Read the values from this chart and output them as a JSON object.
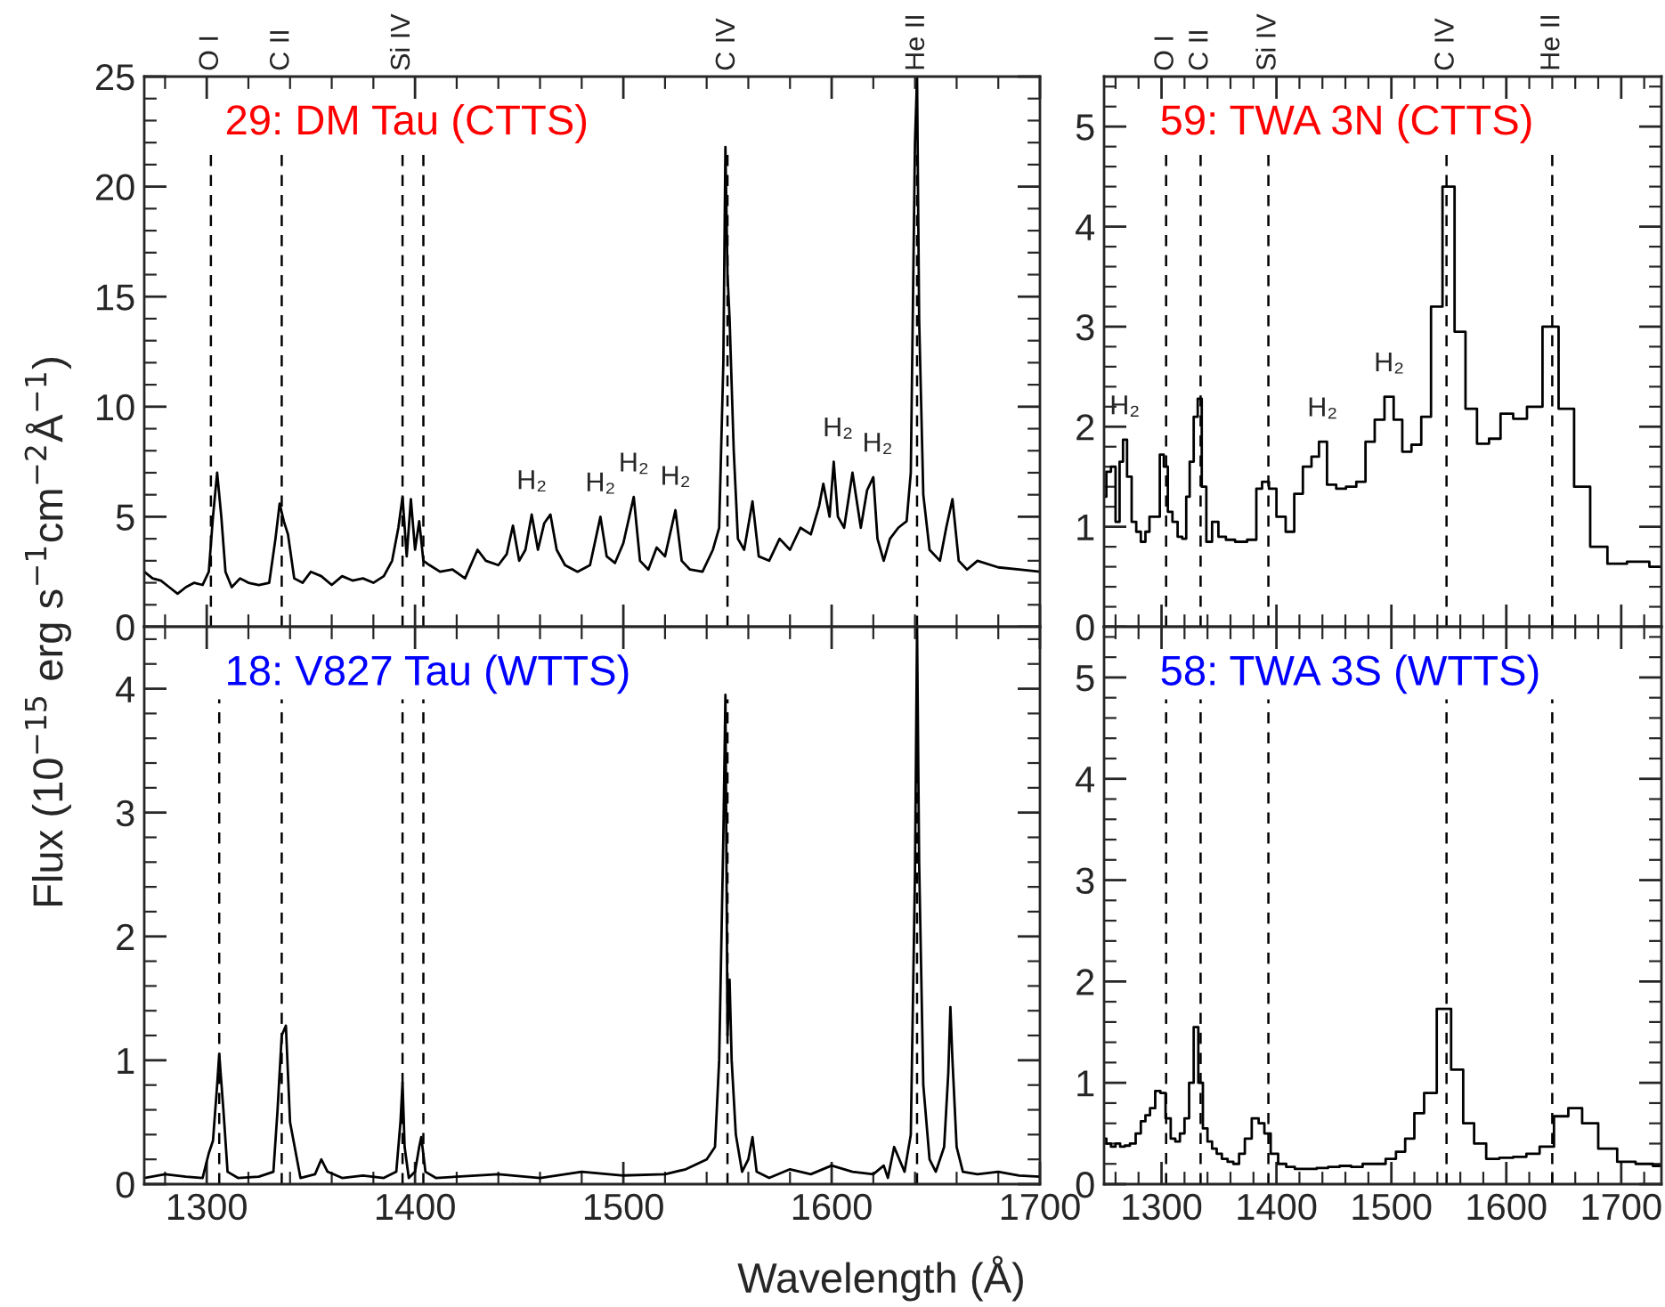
{
  "chart_data": [
    {
      "type": "line",
      "title": "29: DM Tau (CTTS)",
      "ylabel": "Flux (10$^{−15}$ erg s$^{−1}$cm$^{−2}$Å$^{−1}$)",
      "xlim": [
        1270,
        1700
      ],
      "xticks": [
        1300,
        1400,
        1500,
        1600,
        1700
      ],
      "ylim": [
        0,
        25
      ],
      "yticks": [
        0,
        5,
        10,
        15,
        20,
        25
      ],
      "tick_labels": "y",
      "x": [
        1270,
        1274,
        1278,
        1282,
        1286,
        1290,
        1294,
        1298,
        1301,
        1303,
        1305,
        1307,
        1309,
        1312,
        1316,
        1320,
        1325,
        1330,
        1333,
        1335,
        1337,
        1339,
        1342,
        1346,
        1350,
        1355,
        1360,
        1365,
        1370,
        1375,
        1380,
        1385,
        1389,
        1392,
        1394,
        1396,
        1398,
        1400,
        1402,
        1404,
        1407,
        1412,
        1418,
        1424,
        1430,
        1434,
        1440,
        1444,
        1447,
        1450,
        1453,
        1456,
        1459,
        1462,
        1465,
        1468,
        1472,
        1478,
        1484,
        1489,
        1492,
        1496,
        1500,
        1505,
        1508,
        1512,
        1516,
        1520,
        1525,
        1528,
        1532,
        1538,
        1543,
        1546,
        1548,
        1549,
        1550,
        1551,
        1553,
        1555,
        1558,
        1562,
        1565,
        1570,
        1575,
        1580,
        1585,
        1590,
        1594,
        1596,
        1599,
        1601,
        1603,
        1606,
        1610,
        1614,
        1617,
        1620,
        1622,
        1625,
        1628,
        1632,
        1636,
        1638,
        1640,
        1641,
        1642,
        1644,
        1647,
        1652,
        1655,
        1658,
        1661,
        1665,
        1670,
        1680,
        1690,
        1700
      ],
      "series": [
        {
          "color": "#000000",
          "values": [
            2.5,
            2.2,
            2.1,
            1.8,
            1.5,
            1.8,
            2.0,
            1.9,
            2.5,
            5.0,
            7.0,
            5.0,
            2.5,
            1.8,
            2.2,
            2.0,
            1.9,
            2.0,
            4.0,
            5.6,
            4.8,
            4.2,
            2.2,
            2.0,
            2.5,
            2.3,
            1.9,
            2.3,
            2.1,
            2.2,
            2.0,
            2.3,
            3.0,
            4.5,
            5.9,
            3.2,
            5.8,
            3.5,
            4.8,
            3.0,
            2.8,
            2.5,
            2.6,
            2.2,
            3.5,
            3.0,
            2.8,
            3.3,
            4.6,
            3.0,
            3.5,
            5.1,
            3.5,
            4.7,
            5.1,
            3.5,
            2.8,
            2.5,
            2.8,
            5.0,
            3.2,
            2.9,
            3.8,
            5.9,
            3.0,
            2.6,
            3.6,
            3.2,
            5.3,
            3.0,
            2.6,
            2.5,
            3.5,
            4.5,
            12,
            21.8,
            16,
            14,
            8,
            4,
            3.5,
            5.7,
            3.2,
            3.0,
            4.0,
            3.5,
            4.5,
            4.2,
            5.5,
            6.5,
            5.0,
            7.5,
            5.0,
            4.5,
            7.0,
            4.5,
            6.2,
            6.8,
            4.0,
            3.0,
            4.0,
            4.5,
            4.8,
            7,
            22,
            25,
            14,
            6,
            3.5,
            3.0,
            4.5,
            5.8,
            3.0,
            2.6,
            3.0,
            2.7,
            2.6,
            2.5
          ]
        }
      ],
      "ref_lines": [
        {
          "axis": "x",
          "value": 1302,
          "label": "O I",
          "line_style": "dashed"
        },
        {
          "axis": "x",
          "value": 1336,
          "label": "C II",
          "line_style": "dashed"
        },
        {
          "axis": "x",
          "value": 1394,
          "label": "Si IV",
          "line_style": "dashed"
        },
        {
          "axis": "x",
          "value": 1404,
          "line_style": "dashed"
        },
        {
          "axis": "x",
          "value": 1550,
          "label": "C IV",
          "line_style": "dashed"
        },
        {
          "axis": "x",
          "value": 1641,
          "label": "He II",
          "line_style": "dashed"
        }
      ],
      "annotations": [
        {
          "text": "H₂",
          "x": 1456,
          "y": 5.1
        },
        {
          "text": "H₂",
          "x": 1489,
          "y": 5.0
        },
        {
          "text": "H₂",
          "x": 1505,
          "y": 5.9
        },
        {
          "text": "H₂",
          "x": 1525,
          "y": 5.3
        },
        {
          "text": "H₂",
          "x": 1603,
          "y": 7.5
        },
        {
          "text": "H₂",
          "x": 1622,
          "y": 6.8
        }
      ]
    },
    {
      "type": "step",
      "title": "59: TWA 3N (CTTS)",
      "xlim": [
        1250,
        1735
      ],
      "xticks": [
        1300,
        1400,
        1500,
        1600,
        1700
      ],
      "ylim": [
        0,
        5.5
      ],
      "yticks": [
        0,
        1,
        2,
        3,
        4,
        5
      ],
      "tick_labels": "y",
      "x": [
        1250,
        1254,
        1258,
        1262,
        1265,
        1268,
        1272,
        1276,
        1280,
        1284,
        1288,
        1291,
        1297,
        1300,
        1304,
        1307,
        1312,
        1316,
        1320,
        1323,
        1326,
        1330,
        1333,
        1337,
        1341,
        1347,
        1352,
        1360,
        1368,
        1381,
        1384,
        1391,
        1396,
        1404,
        1412,
        1419,
        1427,
        1434,
        1440,
        1448,
        1456,
        1465,
        1474,
        1481,
        1490,
        1498,
        1506,
        1513,
        1522,
        1530,
        1539,
        1550,
        1560,
        1569,
        1580,
        1590,
        1600,
        1612,
        1624,
        1639,
        1652,
        1666,
        1680,
        1696,
        1714,
        1735
      ],
      "series": [
        {
          "color": "#000000",
          "values": [
            1.3,
            1.55,
            1.6,
            1.05,
            1.65,
            1.87,
            1.5,
            1.05,
            0.95,
            0.85,
            0.95,
            1.1,
            1.1,
            1.72,
            1.6,
            1.15,
            1.05,
            0.9,
            0.88,
            1.3,
            1.65,
            2.1,
            2.28,
            1.4,
            0.85,
            1.05,
            0.9,
            0.87,
            0.85,
            0.87,
            1.38,
            1.45,
            1.38,
            1.1,
            0.95,
            1.33,
            1.6,
            1.7,
            1.85,
            1.42,
            1.38,
            1.4,
            1.45,
            1.85,
            2.07,
            2.3,
            2.07,
            1.75,
            1.82,
            2.1,
            3.2,
            4.4,
            2.95,
            2.18,
            1.83,
            1.88,
            2.13,
            2.08,
            2.2,
            3.0,
            2.18,
            1.4,
            0.8,
            0.63,
            0.65,
            0.6
          ]
        }
      ],
      "ref_lines": [
        {
          "axis": "x",
          "value": 1304,
          "label": "O I",
          "line_style": "dashed"
        },
        {
          "axis": "x",
          "value": 1334,
          "label": "C II",
          "line_style": "dashed"
        },
        {
          "axis": "x",
          "value": 1393,
          "label": "Si IV",
          "line_style": "dashed"
        },
        {
          "axis": "x",
          "value": 1548,
          "label": "C IV",
          "line_style": "dashed"
        },
        {
          "axis": "x",
          "value": 1640,
          "label": "He II",
          "line_style": "dashed"
        }
      ],
      "annotations": [
        {
          "text": "H₂",
          "x": 1268,
          "y": 1.87
        },
        {
          "text": "H₂",
          "x": 1440,
          "y": 1.85
        },
        {
          "text": "H₂",
          "x": 1498,
          "y": 2.3
        }
      ]
    },
    {
      "type": "line",
      "title": "18: V827 Tau (WTTS)",
      "xlabel": "Wavelength (Å)",
      "xlim": [
        1270,
        1700
      ],
      "xticks": [
        1300,
        1400,
        1500,
        1600,
        1700
      ],
      "ylim": [
        0,
        4.5
      ],
      "yticks": [
        0,
        1,
        2,
        3,
        4
      ],
      "x": [
        1270,
        1280,
        1290,
        1298,
        1301,
        1303,
        1305,
        1306,
        1308,
        1310,
        1315,
        1325,
        1332,
        1334,
        1336,
        1338,
        1340,
        1345,
        1352,
        1355,
        1358,
        1365,
        1375,
        1385,
        1391,
        1393,
        1394,
        1395,
        1397,
        1400,
        1402,
        1403,
        1405,
        1410,
        1420,
        1440,
        1460,
        1480,
        1500,
        1520,
        1530,
        1540,
        1544,
        1546,
        1548,
        1549,
        1550,
        1551,
        1552,
        1554,
        1557,
        1560,
        1562,
        1564,
        1570,
        1580,
        1590,
        1600,
        1610,
        1620,
        1625,
        1627,
        1630,
        1635,
        1638,
        1640,
        1641,
        1642,
        1644,
        1647,
        1650,
        1654,
        1656,
        1657,
        1658,
        1660,
        1663,
        1670,
        1680,
        1690,
        1700
      ],
      "series": [
        {
          "color": "#000000",
          "values": [
            0.05,
            0.08,
            0.06,
            0.05,
            0.25,
            0.35,
            0.8,
            1.05,
            0.6,
            0.1,
            0.05,
            0.06,
            0.1,
            0.6,
            1.2,
            1.28,
            0.5,
            0.05,
            0.08,
            0.2,
            0.1,
            0.05,
            0.07,
            0.05,
            0.1,
            0.5,
            0.82,
            0.3,
            0.05,
            0.1,
            0.3,
            0.38,
            0.1,
            0.05,
            0.06,
            0.08,
            0.05,
            0.1,
            0.07,
            0.08,
            0.12,
            0.2,
            0.3,
            1.0,
            2.8,
            3.95,
            1.2,
            1.65,
            1.0,
            0.4,
            0.1,
            0.2,
            0.38,
            0.1,
            0.05,
            0.12,
            0.08,
            0.15,
            0.1,
            0.08,
            0.15,
            0.05,
            0.3,
            0.1,
            0.4,
            2.5,
            4.5,
            2.6,
            0.8,
            0.2,
            0.1,
            0.3,
            0.9,
            1.43,
            1.0,
            0.3,
            0.1,
            0.08,
            0.1,
            0.07,
            0.06
          ]
        }
      ],
      "ref_lines": [
        {
          "axis": "x",
          "value": 1306,
          "line_style": "dashed"
        },
        {
          "axis": "x",
          "value": 1336,
          "line_style": "dashed"
        },
        {
          "axis": "x",
          "value": 1394,
          "line_style": "dashed"
        },
        {
          "axis": "x",
          "value": 1404,
          "line_style": "dashed"
        },
        {
          "axis": "x",
          "value": 1550,
          "line_style": "dashed"
        },
        {
          "axis": "x",
          "value": 1641,
          "line_style": "dashed"
        }
      ]
    },
    {
      "type": "step",
      "title": "58: TWA 3S (WTTS)",
      "xlim": [
        1250,
        1735
      ],
      "xticks": [
        1300,
        1400,
        1500,
        1600,
        1700
      ],
      "ylim": [
        0,
        5.5
      ],
      "yticks": [
        0,
        1,
        2,
        3,
        4,
        5
      ],
      "x": [
        1250,
        1254,
        1258,
        1262,
        1266,
        1270,
        1275,
        1280,
        1284,
        1288,
        1292,
        1297,
        1301,
        1306,
        1310,
        1314,
        1318,
        1322,
        1326,
        1330,
        1334,
        1338,
        1342,
        1346,
        1350,
        1355,
        1360,
        1365,
        1370,
        1375,
        1382,
        1387,
        1392,
        1398,
        1405,
        1412,
        1420,
        1430,
        1440,
        1450,
        1460,
        1470,
        1480,
        1490,
        1500,
        1508,
        1516,
        1524,
        1533,
        1546,
        1558,
        1567,
        1577,
        1588,
        1600,
        1612,
        1623,
        1635,
        1648,
        1660,
        1672,
        1688,
        1705,
        1720,
        1735
      ],
      "series": [
        {
          "color": "#000000",
          "values": [
            0.45,
            0.4,
            0.37,
            0.4,
            0.37,
            0.38,
            0.4,
            0.5,
            0.62,
            0.68,
            0.75,
            0.92,
            0.9,
            0.65,
            0.45,
            0.42,
            0.5,
            0.65,
            1.0,
            1.55,
            1.0,
            0.55,
            0.42,
            0.35,
            0.3,
            0.25,
            0.22,
            0.2,
            0.3,
            0.45,
            0.65,
            0.6,
            0.5,
            0.3,
            0.2,
            0.17,
            0.15,
            0.15,
            0.16,
            0.17,
            0.18,
            0.17,
            0.2,
            0.2,
            0.25,
            0.32,
            0.45,
            0.7,
            0.9,
            1.73,
            1.13,
            0.6,
            0.4,
            0.25,
            0.26,
            0.27,
            0.3,
            0.37,
            0.67,
            0.75,
            0.6,
            0.35,
            0.22,
            0.2,
            0.18
          ]
        }
      ],
      "ref_lines": [
        {
          "axis": "x",
          "value": 1304,
          "line_style": "dashed"
        },
        {
          "axis": "x",
          "value": 1334,
          "line_style": "dashed"
        },
        {
          "axis": "x",
          "value": 1393,
          "line_style": "dashed"
        },
        {
          "axis": "x",
          "value": 1548,
          "line_style": "dashed"
        },
        {
          "axis": "x",
          "value": 1640,
          "line_style": "dashed"
        }
      ]
    }
  ]
}
